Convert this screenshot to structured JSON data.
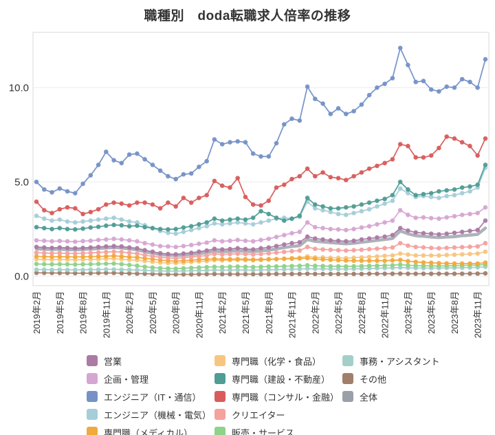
{
  "page": {
    "title": "職種別　doda転職求人倍率の推移"
  },
  "chart_data": {
    "type": "line",
    "title": "職種別　doda転職求人倍率の推移",
    "x_unit": "month",
    "n_points": 59,
    "x_start_label": "2019年2月",
    "x_end_label": "2023年12月",
    "tick_interval_months": 3,
    "x_tick_labels": [
      "2019年2月",
      "2019年5月",
      "2019年8月",
      "2019年11月",
      "2020年2月",
      "2020年5月",
      "2020年8月",
      "2020年11月",
      "2021年2月",
      "2021年5月",
      "2021年8月",
      "2021年11月",
      "2022年2月",
      "2022年5月",
      "2022年8月",
      "2022年11月",
      "2023年2月",
      "2023年5月",
      "2023年8月",
      "2023年11月"
    ],
    "yticks": [
      "0.0",
      "5.0",
      "10.0"
    ],
    "ytick_values": [
      0,
      5,
      10
    ],
    "ylim": [
      -0.5,
      12.93
    ],
    "grid": "horizontal",
    "legend_position": "bottom",
    "legend_columns": [
      [
        "sales",
        "planning",
        "engineer-it",
        "engineer-mech",
        "medical"
      ],
      [
        "chemical-food",
        "construction",
        "consulting",
        "creator",
        "sales-service"
      ],
      [
        "office-assistant",
        "other",
        "overall"
      ]
    ],
    "series": [
      {
        "key": "overall",
        "label": "全体",
        "color": "#9aa0a8",
        "line_width": 4.6,
        "markers": false,
        "opacity": 0.8,
        "values": [
          1.45,
          1.43,
          1.42,
          1.43,
          1.41,
          1.4,
          1.42,
          1.44,
          1.47,
          1.5,
          1.52,
          1.5,
          1.45,
          1.4,
          1.3,
          1.22,
          1.15,
          1.12,
          1.1,
          1.12,
          1.15,
          1.2,
          1.25,
          1.32,
          1.3,
          1.32,
          1.35,
          1.32,
          1.3,
          1.35,
          1.38,
          1.45,
          1.52,
          1.58,
          1.62,
          1.95,
          1.85,
          1.82,
          1.78,
          1.75,
          1.72,
          1.75,
          1.8,
          1.85,
          1.9,
          1.95,
          2.0,
          2.4,
          2.25,
          2.15,
          2.12,
          2.08,
          2.05,
          2.08,
          2.1,
          2.15,
          2.18,
          2.22,
          2.55
        ]
      },
      {
        "key": "other",
        "label": "その他",
        "color": "#a17f6b",
        "line_width": 1.8,
        "markers": true,
        "values": [
          0.18,
          0.18,
          0.17,
          0.17,
          0.17,
          0.16,
          0.16,
          0.16,
          0.17,
          0.17,
          0.17,
          0.16,
          0.15,
          0.14,
          0.13,
          0.12,
          0.11,
          0.1,
          0.1,
          0.1,
          0.1,
          0.11,
          0.11,
          0.12,
          0.11,
          0.11,
          0.11,
          0.11,
          0.11,
          0.11,
          0.11,
          0.12,
          0.12,
          0.12,
          0.12,
          0.13,
          0.12,
          0.12,
          0.12,
          0.12,
          0.12,
          0.12,
          0.12,
          0.13,
          0.13,
          0.13,
          0.13,
          0.14,
          0.13,
          0.13,
          0.13,
          0.13,
          0.13,
          0.13,
          0.13,
          0.13,
          0.14,
          0.14,
          0.15
        ]
      },
      {
        "key": "office-assistant",
        "label": "事務・アシスタント",
        "color": "#a4cfc9",
        "line_width": 1.8,
        "markers": true,
        "values": [
          0.35,
          0.35,
          0.34,
          0.35,
          0.34,
          0.34,
          0.34,
          0.35,
          0.35,
          0.36,
          0.36,
          0.35,
          0.34,
          0.33,
          0.31,
          0.29,
          0.28,
          0.27,
          0.27,
          0.28,
          0.29,
          0.3,
          0.31,
          0.33,
          0.32,
          0.33,
          0.33,
          0.33,
          0.32,
          0.33,
          0.34,
          0.35,
          0.36,
          0.37,
          0.38,
          0.4,
          0.39,
          0.39,
          0.38,
          0.38,
          0.38,
          0.39,
          0.4,
          0.41,
          0.42,
          0.43,
          0.44,
          0.46,
          0.44,
          0.43,
          0.43,
          0.43,
          0.43,
          0.44,
          0.44,
          0.45,
          0.46,
          0.47,
          0.5
        ]
      },
      {
        "key": "sales-service",
        "label": "販売・サービス",
        "color": "#8fd28a",
        "line_width": 1.8,
        "markers": true,
        "values": [
          0.65,
          0.64,
          0.63,
          0.64,
          0.63,
          0.62,
          0.63,
          0.64,
          0.65,
          0.66,
          0.67,
          0.64,
          0.6,
          0.56,
          0.5,
          0.46,
          0.43,
          0.41,
          0.4,
          0.42,
          0.44,
          0.46,
          0.48,
          0.5,
          0.49,
          0.5,
          0.51,
          0.5,
          0.49,
          0.5,
          0.51,
          0.52,
          0.53,
          0.54,
          0.55,
          0.58,
          0.55,
          0.54,
          0.53,
          0.53,
          0.52,
          0.53,
          0.54,
          0.55,
          0.56,
          0.57,
          0.58,
          0.62,
          0.58,
          0.56,
          0.55,
          0.55,
          0.54,
          0.55,
          0.56,
          0.57,
          0.58,
          0.59,
          0.62
        ]
      },
      {
        "key": "chemical-food",
        "label": "専門職（化学・食品）",
        "color": "#f8c581",
        "line_width": 1.8,
        "markers": true,
        "values": [
          0.9,
          0.89,
          0.88,
          0.89,
          0.88,
          0.87,
          0.88,
          0.89,
          0.9,
          0.92,
          0.93,
          0.9,
          0.87,
          0.85,
          0.8,
          0.76,
          0.72,
          0.7,
          0.7,
          0.72,
          0.75,
          0.78,
          0.8,
          0.85,
          0.84,
          0.85,
          0.86,
          0.85,
          0.84,
          0.86,
          0.88,
          0.9,
          0.93,
          0.96,
          0.98,
          1.05,
          1.0,
          1.0,
          0.98,
          0.97,
          0.96,
          0.98,
          1.0,
          1.02,
          1.05,
          1.08,
          1.1,
          1.2,
          1.15,
          1.1,
          1.1,
          1.1,
          1.1,
          1.12,
          1.14,
          1.16,
          1.18,
          1.2,
          1.3
        ]
      },
      {
        "key": "medical",
        "label": "専門職（メディカル）",
        "color": "#f2a93c",
        "line_width": 1.8,
        "markers": true,
        "values": [
          1.05,
          1.04,
          1.03,
          1.04,
          1.03,
          1.02,
          1.03,
          1.04,
          1.05,
          1.06,
          1.08,
          1.05,
          1.02,
          1.0,
          0.95,
          0.9,
          0.85,
          0.82,
          0.8,
          0.82,
          0.85,
          0.88,
          0.9,
          0.92,
          0.9,
          0.9,
          0.91,
          0.9,
          0.88,
          0.89,
          0.9,
          0.91,
          0.92,
          0.93,
          0.94,
          0.96,
          0.92,
          0.89,
          0.87,
          0.85,
          0.83,
          0.82,
          0.82,
          0.82,
          0.82,
          0.82,
          0.84,
          0.86,
          0.8,
          0.76,
          0.73,
          0.71,
          0.69,
          0.68,
          0.67,
          0.67,
          0.67,
          0.67,
          0.72
        ]
      },
      {
        "key": "creator",
        "label": "クリエイター",
        "color": "#f5a19e",
        "line_width": 1.8,
        "markers": true,
        "values": [
          1.25,
          1.23,
          1.22,
          1.23,
          1.21,
          1.2,
          1.22,
          1.24,
          1.26,
          1.28,
          1.3,
          1.28,
          1.24,
          1.2,
          1.12,
          1.06,
          1.0,
          0.97,
          0.95,
          0.98,
          1.02,
          1.06,
          1.1,
          1.18,
          1.15,
          1.17,
          1.19,
          1.17,
          1.15,
          1.18,
          1.21,
          1.25,
          1.29,
          1.33,
          1.36,
          1.55,
          1.45,
          1.42,
          1.4,
          1.38,
          1.36,
          1.38,
          1.4,
          1.43,
          1.46,
          1.49,
          1.52,
          1.75,
          1.62,
          1.55,
          1.53,
          1.5,
          1.48,
          1.5,
          1.52,
          1.54,
          1.56,
          1.58,
          1.75
        ]
      },
      {
        "key": "planning",
        "label": "企画・管理",
        "color": "#d6a6d2",
        "line_width": 1.8,
        "markers": true,
        "values": [
          1.9,
          1.88,
          1.85,
          1.87,
          1.85,
          1.83,
          1.86,
          1.88,
          1.92,
          1.95,
          1.98,
          1.95,
          1.9,
          1.85,
          1.75,
          1.68,
          1.6,
          1.58,
          1.55,
          1.6,
          1.65,
          1.72,
          1.78,
          1.9,
          1.85,
          1.88,
          1.92,
          1.88,
          1.85,
          1.92,
          1.98,
          2.08,
          2.18,
          2.28,
          2.35,
          2.85,
          2.6,
          2.55,
          2.5,
          2.48,
          2.45,
          2.5,
          2.58,
          2.65,
          2.75,
          2.85,
          2.95,
          3.5,
          3.25,
          3.1,
          3.12,
          3.08,
          3.05,
          3.12,
          3.18,
          3.25,
          3.3,
          3.35,
          3.65
        ]
      },
      {
        "key": "sales",
        "label": "営業",
        "color": "#ab7aa5",
        "line_width": 1.8,
        "markers": true,
        "values": [
          1.55,
          1.52,
          1.5,
          1.52,
          1.5,
          1.48,
          1.5,
          1.52,
          1.55,
          1.58,
          1.6,
          1.58,
          1.52,
          1.48,
          1.38,
          1.3,
          1.22,
          1.18,
          1.16,
          1.2,
          1.24,
          1.3,
          1.36,
          1.45,
          1.42,
          1.44,
          1.48,
          1.44,
          1.42,
          1.48,
          1.52,
          1.6,
          1.68,
          1.75,
          1.8,
          2.1,
          2.0,
          1.95,
          1.9,
          1.88,
          1.85,
          1.88,
          1.95,
          2.0,
          2.05,
          2.1,
          2.18,
          2.55,
          2.42,
          2.32,
          2.28,
          2.25,
          2.22,
          2.25,
          2.3,
          2.35,
          2.4,
          2.45,
          2.95
        ]
      },
      {
        "key": "engineer-mech",
        "label": "エンジニア（機械・電気）",
        "color": "#a5ced8",
        "line_width": 1.8,
        "markers": true,
        "values": [
          3.2,
          3.05,
          2.95,
          3.0,
          2.9,
          2.85,
          2.9,
          2.95,
          3.0,
          3.05,
          3.1,
          3.0,
          2.9,
          2.85,
          2.7,
          2.55,
          2.4,
          2.3,
          2.25,
          2.35,
          2.45,
          2.55,
          2.65,
          2.8,
          2.75,
          2.8,
          2.85,
          2.8,
          2.75,
          2.85,
          2.95,
          3.05,
          3.1,
          3.05,
          3.15,
          3.95,
          3.6,
          3.5,
          3.4,
          3.3,
          3.25,
          3.35,
          3.45,
          3.55,
          3.7,
          3.85,
          4.0,
          4.65,
          4.4,
          4.2,
          4.25,
          4.2,
          4.15,
          4.25,
          4.3,
          4.4,
          4.5,
          4.7,
          5.75
        ]
      },
      {
        "key": "construction",
        "label": "専門職（建設・不動産）",
        "color": "#4f9d95",
        "line_width": 1.8,
        "markers": true,
        "values": [
          2.6,
          2.55,
          2.5,
          2.55,
          2.5,
          2.48,
          2.52,
          2.58,
          2.62,
          2.68,
          2.72,
          2.7,
          2.65,
          2.68,
          2.6,
          2.55,
          2.5,
          2.48,
          2.5,
          2.58,
          2.65,
          2.75,
          2.85,
          3.05,
          2.95,
          3.0,
          3.05,
          3.0,
          3.1,
          3.45,
          3.3,
          3.1,
          2.95,
          3.05,
          3.2,
          4.15,
          3.8,
          3.7,
          3.6,
          3.6,
          3.65,
          3.7,
          3.8,
          3.9,
          4.0,
          4.1,
          4.3,
          5.0,
          4.6,
          4.3,
          4.35,
          4.4,
          4.5,
          4.55,
          4.6,
          4.7,
          4.75,
          4.85,
          5.9
        ]
      },
      {
        "key": "consulting",
        "label": "専門職（コンサル・金融）",
        "color": "#d95c5c",
        "line_width": 1.8,
        "markers": true,
        "values": [
          3.95,
          3.5,
          3.35,
          3.55,
          3.65,
          3.6,
          3.3,
          3.4,
          3.55,
          3.8,
          3.9,
          3.85,
          3.75,
          3.9,
          3.9,
          3.8,
          3.6,
          3.9,
          3.7,
          4.15,
          3.9,
          4.15,
          4.3,
          5.05,
          4.8,
          4.7,
          5.2,
          4.2,
          3.8,
          3.75,
          4.0,
          4.7,
          4.85,
          5.15,
          5.3,
          5.7,
          5.3,
          5.5,
          5.25,
          5.2,
          5.1,
          5.3,
          5.5,
          5.7,
          5.85,
          6.0,
          6.2,
          7.0,
          6.9,
          6.3,
          6.3,
          6.4,
          6.8,
          7.4,
          7.3,
          7.1,
          6.9,
          6.4,
          7.3
        ]
      },
      {
        "key": "engineer-it",
        "label": "エンジニア（IT・通信）",
        "color": "#7591c8",
        "line_width": 1.8,
        "markers": true,
        "values": [
          5.0,
          4.6,
          4.45,
          4.65,
          4.5,
          4.4,
          4.9,
          5.35,
          5.9,
          6.6,
          6.15,
          6.0,
          6.45,
          6.5,
          6.2,
          5.9,
          5.6,
          5.3,
          5.15,
          5.4,
          5.45,
          5.8,
          6.1,
          7.25,
          7.0,
          7.1,
          7.15,
          7.1,
          6.5,
          6.35,
          6.35,
          7.05,
          8.05,
          8.35,
          8.25,
          10.05,
          9.4,
          9.15,
          8.6,
          8.9,
          8.6,
          8.75,
          9.1,
          9.6,
          10.0,
          10.2,
          10.5,
          12.1,
          11.2,
          10.3,
          10.35,
          9.9,
          9.8,
          10.05,
          10.0,
          10.45,
          10.3,
          10.0,
          11.5
        ]
      }
    ]
  }
}
